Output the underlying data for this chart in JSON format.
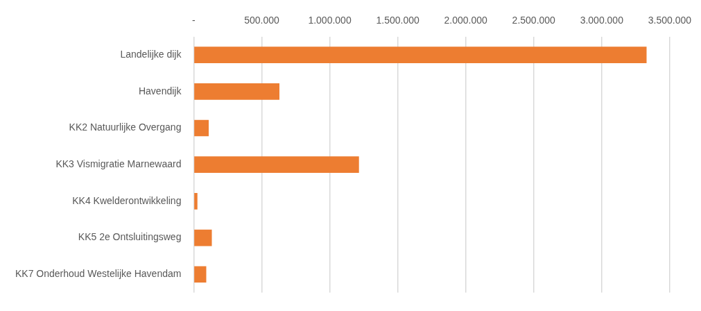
{
  "chart_data": {
    "type": "bar",
    "orientation": "horizontal",
    "categories": [
      "Landelijke dijk",
      "Havendijk",
      "KK2 Natuurlijke Overgang",
      "KK3 Vismigratie Marnewaard",
      "KK4 Kwelderontwikkeling",
      "KK5 2e Ontsluitingsweg",
      "KK7 Onderhoud Westelijke Havendam"
    ],
    "values": [
      3330000,
      630000,
      110000,
      1215000,
      27000,
      133000,
      92000
    ],
    "color": "#ed7d31",
    "xlim": [
      0,
      3500000
    ],
    "xticks": [
      {
        "value": 0,
        "label": "-"
      },
      {
        "value": 500000,
        "label": "500.000"
      },
      {
        "value": 1000000,
        "label": "1.000.000"
      },
      {
        "value": 1500000,
        "label": "1.500.000"
      },
      {
        "value": 2000000,
        "label": "2.000.000"
      },
      {
        "value": 2500000,
        "label": "2.500.000"
      },
      {
        "value": 3000000,
        "label": "3.000.000"
      },
      {
        "value": 3500000,
        "label": "3.500.000"
      }
    ],
    "grid": "x",
    "legend": false
  }
}
